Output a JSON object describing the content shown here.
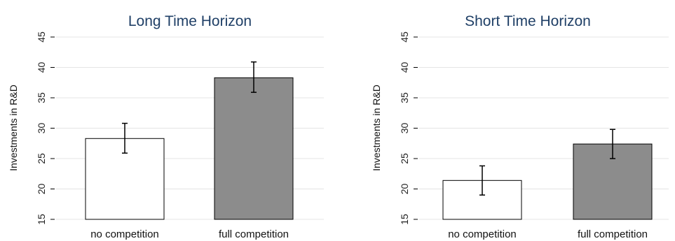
{
  "chart_data": [
    {
      "type": "bar",
      "title": "Long Time Horizon",
      "ylabel": "Investments in R&D",
      "xlabel": "",
      "ylim": [
        15,
        45
      ],
      "yticks": [
        15,
        20,
        25,
        30,
        35,
        40,
        45
      ],
      "grid": true,
      "categories": [
        "no competition",
        "full competition"
      ],
      "values": [
        28.3,
        38.3
      ],
      "error_low": [
        25.9,
        35.9
      ],
      "error_high": [
        30.8,
        40.9
      ],
      "bar_colors": [
        "#ffffff",
        "#8c8c8c"
      ]
    },
    {
      "type": "bar",
      "title": "Short Time Horizon",
      "ylabel": "Investments in R&D",
      "xlabel": "",
      "ylim": [
        15,
        45
      ],
      "yticks": [
        15,
        20,
        25,
        30,
        35,
        40,
        45
      ],
      "grid": true,
      "categories": [
        "no competition",
        "full competition"
      ],
      "values": [
        21.4,
        27.4
      ],
      "error_low": [
        19.0,
        25.0
      ],
      "error_high": [
        23.8,
        29.8
      ],
      "bar_colors": [
        "#ffffff",
        "#8c8c8c"
      ]
    }
  ]
}
